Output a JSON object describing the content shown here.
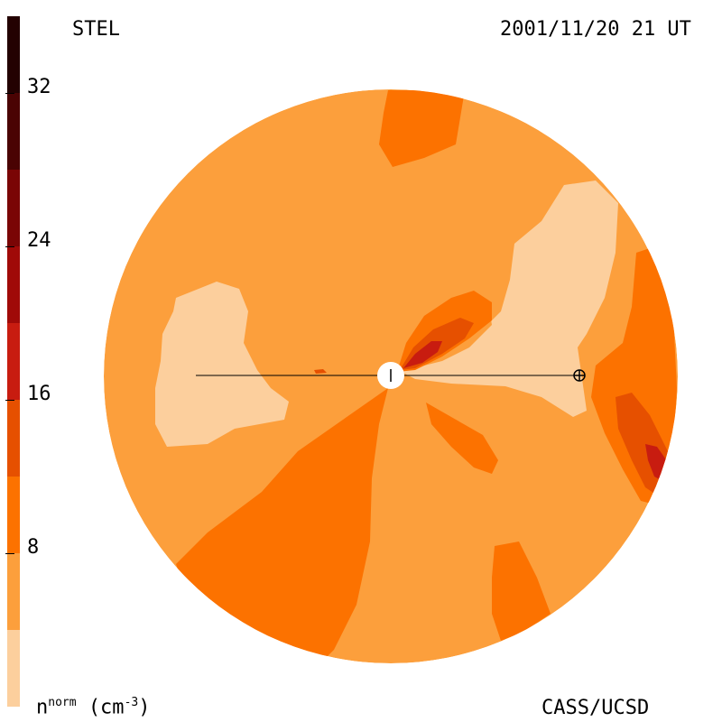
{
  "header": {
    "instrument": "STEL",
    "timestamp": "2001/11/20 21 UT"
  },
  "footer": {
    "unit_base": "n",
    "unit_super": "norm",
    "unit_open": "(cm",
    "unit_exp": "-3",
    "unit_close": ")",
    "credit": "CASS/UCSD"
  },
  "colorbar": {
    "min": 0,
    "max": 36,
    "step": 4,
    "tick_labels": [
      "32",
      "24",
      "16",
      "8"
    ],
    "tick_values": [
      32,
      24,
      16,
      8
    ],
    "colors": [
      "#fccf9d",
      "#fc9f3c",
      "#fc7200",
      "#e65000",
      "#c81c10",
      "#a00a08",
      "#7a0505",
      "#4a0303",
      "#230101"
    ]
  },
  "map": {
    "background_color": "#fc9f3c",
    "sun_marker": "sun-symbol",
    "earth_marker": "earth-symbol"
  }
}
